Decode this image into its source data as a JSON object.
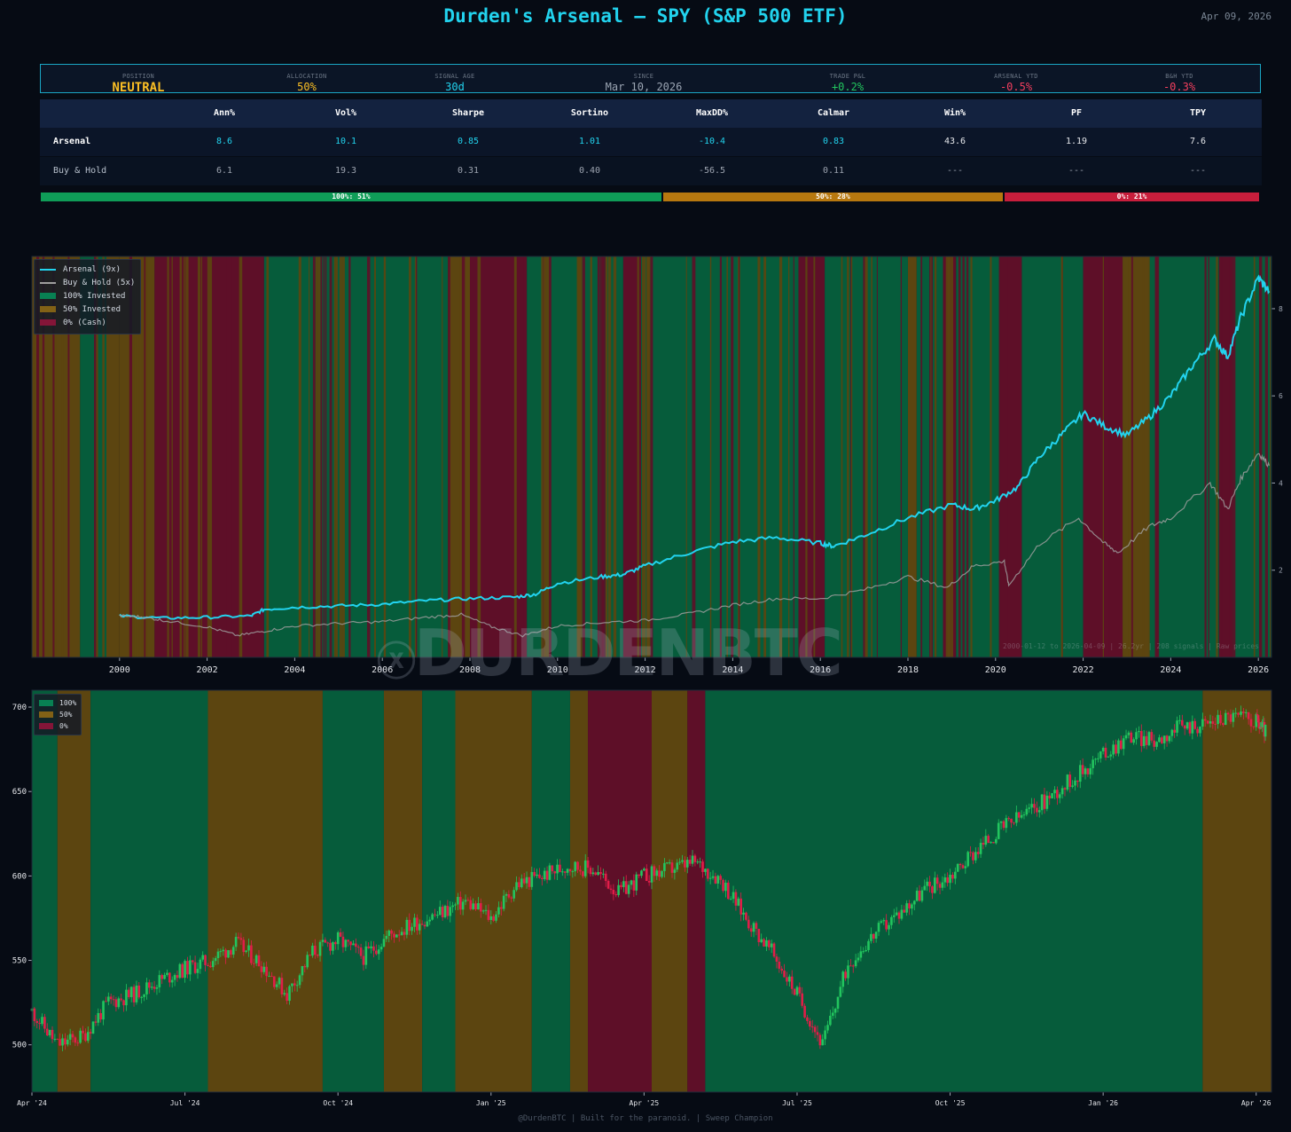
{
  "header": {
    "title": "Durden's Arsenal  —  SPY (S&P 500 ETF)",
    "date": "Apr 09, 2026"
  },
  "status": [
    {
      "label": "POSITION",
      "value": "NEUTRAL",
      "color": "#fbbf24"
    },
    {
      "label": "ALLOCATION",
      "value": "50%",
      "color": "#fbbf24"
    },
    {
      "label": "SIGNAL AGE",
      "value": "30d",
      "color": "#22d3ee"
    },
    {
      "label": "SINCE",
      "value": "Mar 10, 2026",
      "color": "#9aa4b2"
    },
    {
      "label": "TRADE P&L",
      "value": "+0.2%",
      "color": "#22c55e"
    },
    {
      "label": "ARSENAL YTD",
      "value": "-0.5%",
      "color": "#f43f5e"
    },
    {
      "label": "B&H YTD",
      "value": "-0.3%",
      "color": "#f43f5e"
    }
  ],
  "stats": {
    "headers": [
      "",
      "Ann%",
      "Vol%",
      "Sharpe",
      "Sortino",
      "MaxDD%",
      "Calmar",
      "Win%",
      "PF",
      "TPY"
    ],
    "rows": [
      {
        "label": "Arsenal",
        "values": [
          "8.6",
          "10.1",
          "0.85",
          "1.01",
          "-10.4",
          "0.83",
          "43.6",
          "1.19",
          "7.6"
        ]
      },
      {
        "label": "Buy & Hold",
        "values": [
          "6.1",
          "19.3",
          "0.31",
          "0.40",
          "-56.5",
          "0.11",
          "---",
          "---",
          "---"
        ]
      }
    ]
  },
  "allocation_bar": [
    {
      "label": "100%: 51%",
      "fraction": 0.51,
      "color": "#0f9d58"
    },
    {
      "label": "50%: 28%",
      "fraction": 0.28,
      "color": "#b7780f"
    },
    {
      "label": "0%: 21%",
      "fraction": 0.21,
      "color": "#c81e3c"
    }
  ],
  "watermark": "DURDENBTC",
  "footer": "@DurdenBTC  |  Built for the paranoid.  |  Sweep Champion",
  "colors": {
    "invested100": "#065c3b",
    "invested50": "#5c4510",
    "cash": "#5e0f28",
    "arsenal": "#22d3ee",
    "buyhold": "#9e9e9e",
    "up": "#22c55e",
    "down": "#e11d48"
  },
  "chart_data": [
    {
      "type": "line",
      "xlim": [
        1998.0,
        2026.3
      ],
      "ylim": [
        0,
        9.2
      ],
      "x_ticks": [
        "2000",
        "2002",
        "2004",
        "2006",
        "2008",
        "2010",
        "2012",
        "2014",
        "2016",
        "2018",
        "2020",
        "2022",
        "2024",
        "2026"
      ],
      "y_ticks": [
        "2",
        "4",
        "6",
        "8"
      ],
      "note": "2000-01-12 to 2026-04-09  |  26.2yr  |  208 signals  |  Raw prices",
      "legend": [
        "Arsenal (9x)",
        "Buy & Hold (5x)",
        "100% Invested",
        "50% Invested",
        "0% (Cash)"
      ],
      "series": [
        {
          "name": "Arsenal (9x)",
          "x": [
            2000.0,
            2001.0,
            2002.0,
            2003.0,
            2003.3,
            2004.0,
            2005.0,
            2006.0,
            2007.0,
            2008.0,
            2009.0,
            2009.5,
            2010.0,
            2011.0,
            2011.5,
            2012.0,
            2013.0,
            2014.0,
            2015.0,
            2016.0,
            2016.3,
            2017.0,
            2018.0,
            2019.0,
            2019.5,
            2020.0,
            2020.5,
            2021.0,
            2021.5,
            2022.0,
            2022.5,
            2023.0,
            2023.5,
            2024.0,
            2024.5,
            2025.0,
            2025.3,
            2025.6,
            2026.0,
            2026.25
          ],
          "y": [
            0.95,
            0.9,
            0.92,
            0.95,
            1.1,
            1.15,
            1.18,
            1.22,
            1.3,
            1.35,
            1.38,
            1.45,
            1.7,
            1.85,
            1.9,
            2.1,
            2.4,
            2.65,
            2.75,
            2.62,
            2.55,
            2.8,
            3.2,
            3.5,
            3.4,
            3.6,
            3.9,
            4.6,
            5.1,
            5.6,
            5.3,
            5.1,
            5.5,
            6.0,
            6.7,
            7.3,
            6.9,
            7.8,
            8.7,
            8.4
          ]
        },
        {
          "name": "Buy & Hold (5x)",
          "x": [
            2000.0,
            2000.5,
            2001.0,
            2002.0,
            2002.7,
            2003.3,
            2004.0,
            2005.0,
            2006.0,
            2007.0,
            2007.8,
            2008.5,
            2009.2,
            2010.0,
            2011.0,
            2012.0,
            2013.0,
            2014.0,
            2015.0,
            2016.0,
            2017.0,
            2018.0,
            2018.9,
            2019.5,
            2020.2,
            2020.3,
            2021.0,
            2021.9,
            2022.5,
            2022.8,
            2023.5,
            2024.0,
            2024.9,
            2025.3,
            2025.6,
            2026.0,
            2026.25
          ],
          "y": [
            0.95,
            0.93,
            0.85,
            0.7,
            0.5,
            0.6,
            0.72,
            0.78,
            0.82,
            0.92,
            0.98,
            0.7,
            0.5,
            0.72,
            0.8,
            0.85,
            1.0,
            1.2,
            1.35,
            1.35,
            1.55,
            1.85,
            1.6,
            2.1,
            2.2,
            1.65,
            2.6,
            3.2,
            2.6,
            2.4,
            3.0,
            3.2,
            4.0,
            3.4,
            4.1,
            4.7,
            4.4
          ]
        }
      ],
      "regimes": [
        [
          1998.0,
          1999.1,
          "50"
        ],
        [
          1999.1,
          1999.7,
          "100"
        ],
        [
          1999.7,
          2000.0,
          "50"
        ],
        [
          2000.0,
          2000.8,
          "50"
        ],
        [
          2000.8,
          2003.3,
          "0"
        ],
        [
          2003.3,
          2007.5,
          "100"
        ],
        [
          2007.5,
          2008.0,
          "50"
        ],
        [
          2008.0,
          2009.3,
          "0"
        ],
        [
          2009.3,
          2011.5,
          "100"
        ],
        [
          2011.5,
          2011.9,
          "0"
        ],
        [
          2011.9,
          2015.5,
          "100"
        ],
        [
          2015.5,
          2016.1,
          "0"
        ],
        [
          2016.1,
          2018.0,
          "100"
        ],
        [
          2018.0,
          2018.2,
          "50"
        ],
        [
          2018.2,
          2018.8,
          "100"
        ],
        [
          2018.8,
          2019.1,
          "0"
        ],
        [
          2019.1,
          2020.1,
          "100"
        ],
        [
          2020.1,
          2020.6,
          "0"
        ],
        [
          2020.6,
          2022.0,
          "100"
        ],
        [
          2022.0,
          2022.9,
          "0"
        ],
        [
          2022.9,
          2023.5,
          "50"
        ],
        [
          2023.5,
          2025.1,
          "100"
        ],
        [
          2025.1,
          2025.4,
          "0"
        ],
        [
          2025.4,
          2026.3,
          "100"
        ]
      ]
    },
    {
      "type": "candlestick",
      "xlim": [
        0,
        24.3
      ],
      "ylim": [
        472,
        710
      ],
      "x_ticks": [
        "Apr '24",
        "Jul '24",
        "Oct '24",
        "Jan '25",
        "Apr '25",
        "Jul '25",
        "Oct '25",
        "Jan '26",
        "Apr '26"
      ],
      "y_ticks": [
        "500",
        "550",
        "600",
        "650",
        "700"
      ],
      "legend": [
        "100%",
        "50%",
        "0%"
      ],
      "close_x": [
        0,
        0.5,
        1,
        1.5,
        2,
        2.5,
        3,
        3.5,
        4,
        4.5,
        5,
        5.5,
        6,
        6.5,
        7,
        7.5,
        8,
        8.5,
        9,
        9.5,
        10,
        10.5,
        11,
        11.5,
        12,
        12.5,
        13,
        13.5,
        14,
        14.5,
        15,
        15.5,
        16,
        16.5,
        17,
        17.5,
        18,
        18.5,
        19,
        19.5,
        20,
        20.5,
        21,
        21.5,
        22,
        22.5,
        23,
        23.5,
        24,
        24.2
      ],
      "close_y": [
        520,
        500,
        505,
        525,
        530,
        538,
        545,
        550,
        560,
        548,
        530,
        555,
        562,
        552,
        565,
        572,
        578,
        585,
        575,
        595,
        600,
        606,
        604,
        590,
        600,
        604,
        608,
        598,
        575,
        555,
        530,
        500,
        548,
        565,
        578,
        592,
        600,
        615,
        628,
        637,
        648,
        660,
        672,
        683,
        680,
        688,
        690,
        695,
        692,
        685
      ],
      "regimes": [
        [
          0,
          0.5,
          "100"
        ],
        [
          0.5,
          1.15,
          "50"
        ],
        [
          1.15,
          3.45,
          "100"
        ],
        [
          3.45,
          5.7,
          "50"
        ],
        [
          5.7,
          6.9,
          "100"
        ],
        [
          6.9,
          7.65,
          "50"
        ],
        [
          7.65,
          8.3,
          "100"
        ],
        [
          8.3,
          9.8,
          "50"
        ],
        [
          9.8,
          10.55,
          "100"
        ],
        [
          10.55,
          10.9,
          "50"
        ],
        [
          10.9,
          12.15,
          "0"
        ],
        [
          12.15,
          12.85,
          "50"
        ],
        [
          12.85,
          13.2,
          "0"
        ],
        [
          13.2,
          22.95,
          "100"
        ],
        [
          22.95,
          24.3,
          "50"
        ]
      ]
    }
  ]
}
